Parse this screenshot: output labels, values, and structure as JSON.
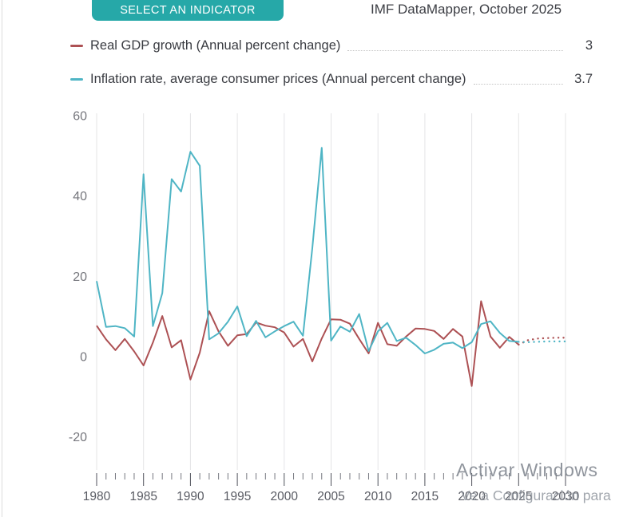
{
  "header": {
    "select_button": "SELECT AN INDICATOR",
    "title": "IMF DataMapper, October 2025"
  },
  "legend": [
    {
      "label": "Real GDP growth (Annual percent change)",
      "value": "3",
      "color": "#ad5154"
    },
    {
      "label": "Inflation rate, average consumer prices (Annual percent change)",
      "value": "3.7",
      "color": "#4fb5c5"
    }
  ],
  "watermark": {
    "line1": "Activar Windows",
    "line2": "Ve a Configuración para"
  },
  "chart_data": {
    "type": "line",
    "title": "IMF DataMapper, October 2025",
    "x_start": 1980,
    "x_end": 2030,
    "projection_from": 2025,
    "xticks": [
      1980,
      1985,
      1990,
      1995,
      2000,
      2005,
      2010,
      2015,
      2020,
      2025,
      2030
    ],
    "yticks": [
      60,
      40,
      20,
      0,
      -20
    ],
    "ylim": [
      -20,
      60
    ],
    "grid": "vertical",
    "legend_position": "top",
    "x": [
      1980,
      1981,
      1982,
      1983,
      1984,
      1985,
      1986,
      1987,
      1988,
      1989,
      1990,
      1991,
      1992,
      1993,
      1994,
      1995,
      1996,
      1997,
      1998,
      1999,
      2000,
      2001,
      2002,
      2003,
      2004,
      2005,
      2006,
      2007,
      2008,
      2009,
      2010,
      2011,
      2012,
      2013,
      2014,
      2015,
      2016,
      2017,
      2018,
      2019,
      2020,
      2021,
      2022,
      2023,
      2024,
      2025,
      2026,
      2027,
      2028,
      2029,
      2030
    ],
    "series": [
      {
        "name": "Real GDP growth (Annual percent change)",
        "color": "#ad5154",
        "latest_value": 3,
        "values": [
          7.7,
          4.3,
          1.6,
          4.4,
          1.3,
          -2.2,
          3.5,
          10.1,
          2.3,
          4.1,
          -5.7,
          1.0,
          11.3,
          6.3,
          2.7,
          5.3,
          5.6,
          8.5,
          7.7,
          7.3,
          6.0,
          2.5,
          4.4,
          -1.2,
          4.5,
          9.3,
          9.2,
          8.2,
          4.4,
          0.8,
          8.4,
          3.1,
          2.7,
          5.0,
          7.0,
          6.9,
          6.4,
          4.4,
          6.9,
          5.0,
          -7.3,
          13.8,
          5.0,
          2.2,
          4.9,
          3.0,
          4.1,
          4.5,
          4.6,
          4.7,
          4.7
        ]
      },
      {
        "name": "Inflation rate, average consumer prices (Annual percent change)",
        "color": "#4fb5c5",
        "latest_value": 3.7,
        "values": [
          18.8,
          7.4,
          7.6,
          7.1,
          5.0,
          45.4,
          7.6,
          15.8,
          44.2,
          41.1,
          51.0,
          47.5,
          4.3,
          5.8,
          8.7,
          12.5,
          5.1,
          8.9,
          4.8,
          6.3,
          7.6,
          8.7,
          5.2,
          27.0,
          52.0,
          4.0,
          7.5,
          6.2,
          10.6,
          1.4,
          6.3,
          8.4,
          3.9,
          4.7,
          2.9,
          0.8,
          1.7,
          3.2,
          3.5,
          2.1,
          3.6,
          8.1,
          8.8,
          5.9,
          3.9,
          3.7,
          3.6,
          3.7,
          3.8,
          3.8,
          3.8
        ]
      }
    ]
  }
}
